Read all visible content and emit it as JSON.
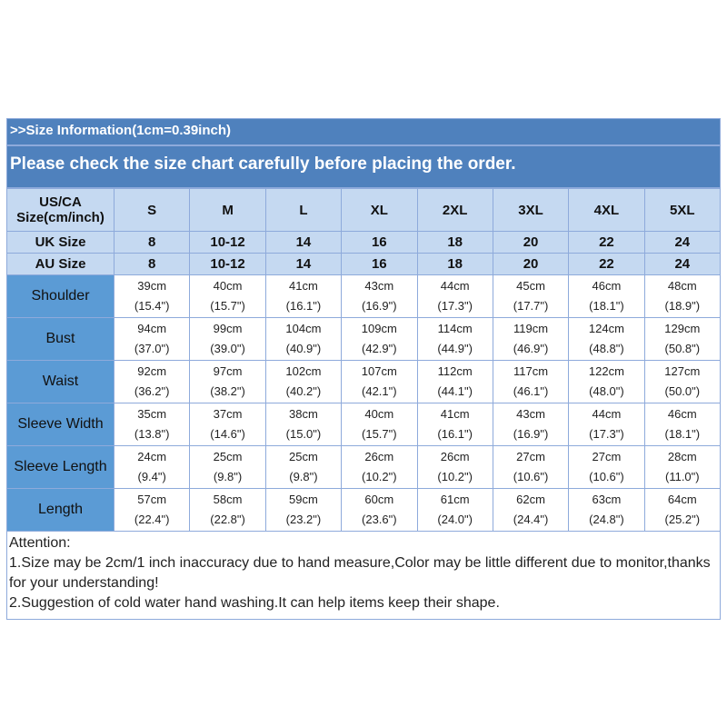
{
  "header": {
    "info": ">>Size Information(1cm=0.39inch)",
    "notice": "Please check the size chart carefully before placing the order."
  },
  "colors": {
    "title_bg": "#4f81bd",
    "header_bg": "#c5d9f1",
    "label_bg": "#5b9bd5"
  },
  "table": {
    "size_rows": [
      {
        "label": "US/CA Size(cm/inch)",
        "values": [
          "S",
          "M",
          "L",
          "XL",
          "2XL",
          "3XL",
          "4XL",
          "5XL"
        ]
      },
      {
        "label": "UK Size",
        "values": [
          "8",
          "10-12",
          "14",
          "16",
          "18",
          "20",
          "22",
          "24"
        ]
      },
      {
        "label": "AU Size",
        "values": [
          "8",
          "10-12",
          "14",
          "16",
          "18",
          "20",
          "22",
          "24"
        ]
      }
    ],
    "measure_rows": [
      {
        "label": "Shoulder",
        "cm": [
          "39cm",
          "40cm",
          "41cm",
          "43cm",
          "44cm",
          "45cm",
          "46cm",
          "48cm"
        ],
        "inch": [
          "(15.4\")",
          "(15.7\")",
          "(16.1\")",
          "(16.9\")",
          "(17.3\")",
          "(17.7\")",
          "(18.1\")",
          "(18.9\")"
        ]
      },
      {
        "label": "Bust",
        "cm": [
          "94cm",
          "99cm",
          "104cm",
          "109cm",
          "114cm",
          "119cm",
          "124cm",
          "129cm"
        ],
        "inch": [
          "(37.0\")",
          "(39.0\")",
          "(40.9\")",
          "(42.9\")",
          "(44.9\")",
          "(46.9\")",
          "(48.8\")",
          "(50.8\")"
        ]
      },
      {
        "label": "Waist",
        "cm": [
          "92cm",
          "97cm",
          "102cm",
          "107cm",
          "112cm",
          "117cm",
          "122cm",
          "127cm"
        ],
        "inch": [
          "(36.2\")",
          "(38.2\")",
          "(40.2\")",
          "(42.1\")",
          "(44.1\")",
          "(46.1\")",
          "(48.0\")",
          "(50.0\")"
        ]
      },
      {
        "label": "Sleeve Width",
        "cm": [
          "35cm",
          "37cm",
          "38cm",
          "40cm",
          "41cm",
          "43cm",
          "44cm",
          "46cm"
        ],
        "inch": [
          "(13.8\")",
          "(14.6\")",
          "(15.0\")",
          "(15.7\")",
          "(16.1\")",
          "(16.9\")",
          "(17.3\")",
          "(18.1\")"
        ]
      },
      {
        "label": "Sleeve Length",
        "cm": [
          "24cm",
          "25cm",
          "25cm",
          "26cm",
          "26cm",
          "27cm",
          "27cm",
          "28cm"
        ],
        "inch": [
          "(9.4\")",
          "(9.8\")",
          "(9.8\")",
          "(10.2\")",
          "(10.2\")",
          "(10.6\")",
          "(10.6\")",
          "(11.0\")"
        ]
      },
      {
        "label": "Length",
        "cm": [
          "57cm",
          "58cm",
          "59cm",
          "60cm",
          "61cm",
          "62cm",
          "63cm",
          "64cm"
        ],
        "inch": [
          "(22.4\")",
          "(22.8\")",
          "(23.2\")",
          "(23.6\")",
          "(24.0\")",
          "(24.4\")",
          "(24.8\")",
          "(25.2\")"
        ]
      }
    ]
  },
  "attention": {
    "title": "Attention:",
    "lines": [
      "1.Size may be 2cm/1  inch inaccuracy due to hand measure,Color may be little different due to monitor,thanks for your understanding!",
      "2.Suggestion of cold water hand washing.It can help items keep their shape."
    ]
  }
}
